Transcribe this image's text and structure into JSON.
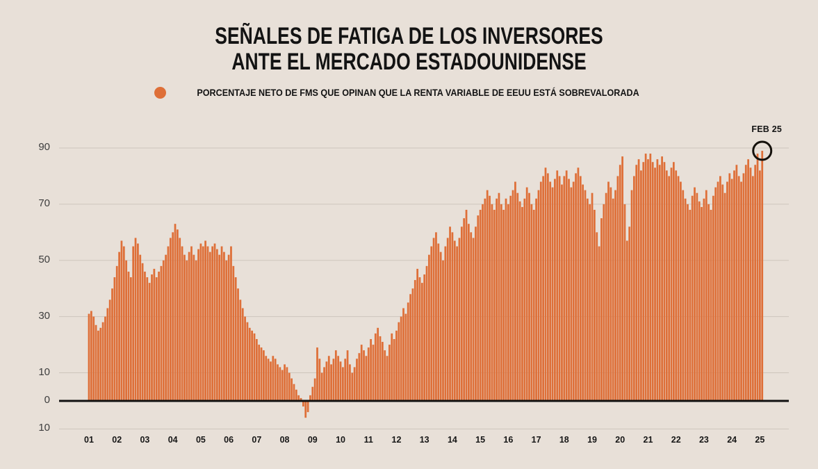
{
  "title": {
    "line1": "SEÑALES DE FATIGA DE LOS INVERSORES",
    "line2": "ANTE EL MERCADO ESTADOUNIDENSE"
  },
  "legend": {
    "label": "PORCENTAJE NETO DE FMS QUE OPINAN QUE LA RENTA VARIABLE DE EEUU ESTÁ SOBREVALORADA"
  },
  "annotation": {
    "label": "FEB 25"
  },
  "colors": {
    "background": "#e8e0d8",
    "bar": "#de6f38",
    "grid": "#cdc5bc",
    "axis": "#111111",
    "highlight_ring": "#15110c"
  },
  "chart_data": {
    "type": "bar",
    "title": "Señales de fatiga de los inversores ante el mercado estadounidense",
    "series_name": "Porcentaje neto de FMS que opinan que la renta variable de EEUU está sobrevalorada",
    "x_unit": "month",
    "x_range": [
      "2001-01",
      "2025-02"
    ],
    "x_year_labels": [
      "01",
      "02",
      "03",
      "04",
      "05",
      "06",
      "07",
      "08",
      "09",
      "10",
      "11",
      "12",
      "13",
      "14",
      "15",
      "16",
      "17",
      "18",
      "19",
      "20",
      "21",
      "22",
      "23",
      "24",
      "25"
    ],
    "yticks": [
      {
        "value": 90,
        "label": "90"
      },
      {
        "value": 70,
        "label": "70"
      },
      {
        "value": 50,
        "label": "50"
      },
      {
        "value": 30,
        "label": "30"
      },
      {
        "value": 10,
        "label": "10"
      },
      {
        "value": 0,
        "label": "0"
      },
      {
        "value": -10,
        "label": "10"
      }
    ],
    "ylim": [
      -10,
      93
    ],
    "grid": true,
    "legend_position": "top",
    "values": [
      31,
      32,
      30,
      27,
      25,
      26,
      28,
      30,
      33,
      36,
      40,
      44,
      48,
      53,
      57,
      55,
      50,
      46,
      44,
      55,
      58,
      56,
      52,
      49,
      46,
      44,
      42,
      45,
      47,
      44,
      46,
      48,
      50,
      52,
      55,
      58,
      60,
      63,
      61,
      58,
      55,
      52,
      50,
      53,
      55,
      52,
      50,
      54,
      56,
      55,
      57,
      55,
      53,
      55,
      56,
      54,
      52,
      55,
      53,
      50,
      52,
      55,
      48,
      44,
      40,
      36,
      33,
      30,
      28,
      26,
      25,
      24,
      22,
      20,
      19,
      18,
      16,
      15,
      14,
      16,
      15,
      13,
      12,
      11,
      13,
      12,
      10,
      8,
      6,
      4,
      2,
      1,
      -2,
      -6,
      -4,
      2,
      5,
      8,
      19,
      15,
      10,
      12,
      14,
      16,
      13,
      15,
      18,
      16,
      14,
      12,
      15,
      18,
      13,
      10,
      12,
      15,
      17,
      20,
      18,
      16,
      19,
      22,
      20,
      24,
      26,
      23,
      21,
      18,
      16,
      20,
      24,
      22,
      25,
      28,
      30,
      33,
      31,
      35,
      38,
      40,
      43,
      47,
      44,
      42,
      45,
      48,
      52,
      55,
      58,
      60,
      56,
      53,
      50,
      55,
      58,
      62,
      60,
      57,
      55,
      58,
      62,
      65,
      68,
      63,
      60,
      58,
      62,
      66,
      68,
      70,
      72,
      75,
      73,
      70,
      68,
      72,
      74,
      70,
      68,
      72,
      70,
      73,
      75,
      78,
      74,
      71,
      69,
      72,
      76,
      74,
      70,
      68,
      72,
      75,
      78,
      80,
      83,
      81,
      78,
      76,
      79,
      82,
      80,
      77,
      80,
      82,
      79,
      76,
      78,
      81,
      83,
      80,
      77,
      75,
      72,
      70,
      74,
      68,
      60,
      55,
      65,
      70,
      74,
      78,
      76,
      72,
      75,
      80,
      84,
      87,
      70,
      57,
      62,
      75,
      80,
      84,
      86,
      82,
      85,
      88,
      86,
      88,
      85,
      83,
      86,
      84,
      87,
      85,
      82,
      80,
      83,
      85,
      82,
      80,
      78,
      75,
      72,
      70,
      68,
      73,
      76,
      74,
      71,
      69,
      72,
      75,
      70,
      68,
      73,
      76,
      78,
      80,
      77,
      74,
      78,
      81,
      79,
      82,
      84,
      80,
      78,
      81,
      84,
      86,
      83,
      80,
      84,
      88,
      82,
      89
    ],
    "highlight": {
      "label": "FEB 25",
      "x": "2025-02",
      "value": 89
    }
  }
}
